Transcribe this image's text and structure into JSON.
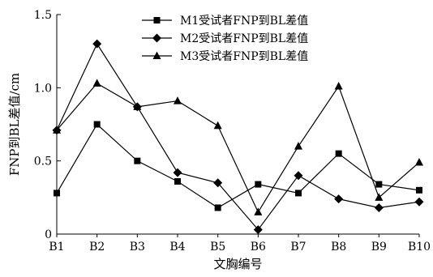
{
  "chart_data": {
    "type": "line",
    "xlabel": "文胸编号",
    "ylabel": "FNP到BL差值/cm",
    "categories": [
      "B1",
      "B2",
      "B3",
      "B4",
      "B5",
      "B6",
      "B7",
      "B8",
      "B9",
      "B10"
    ],
    "ylim": [
      0,
      1.5
    ],
    "yticks": [
      "0",
      "0.5",
      "1.0",
      "1.5"
    ],
    "grid": false,
    "legend_position": "top-right",
    "series": [
      {
        "name": "M1受试者FNP到BL差值",
        "marker": "square",
        "values": [
          0.28,
          0.75,
          0.5,
          0.36,
          0.18,
          0.34,
          0.28,
          0.55,
          0.34,
          0.3
        ]
      },
      {
        "name": "M2受试者FNP到BL差值",
        "marker": "diamond",
        "values": [
          0.71,
          1.3,
          0.87,
          0.42,
          0.35,
          0.03,
          0.4,
          0.24,
          0.18,
          0.22
        ]
      },
      {
        "name": "M3受试者FNP到BL差值",
        "marker": "triangle",
        "values": [
          0.71,
          1.03,
          0.87,
          0.91,
          0.74,
          0.15,
          0.6,
          1.01,
          0.25,
          0.49
        ]
      }
    ]
  }
}
